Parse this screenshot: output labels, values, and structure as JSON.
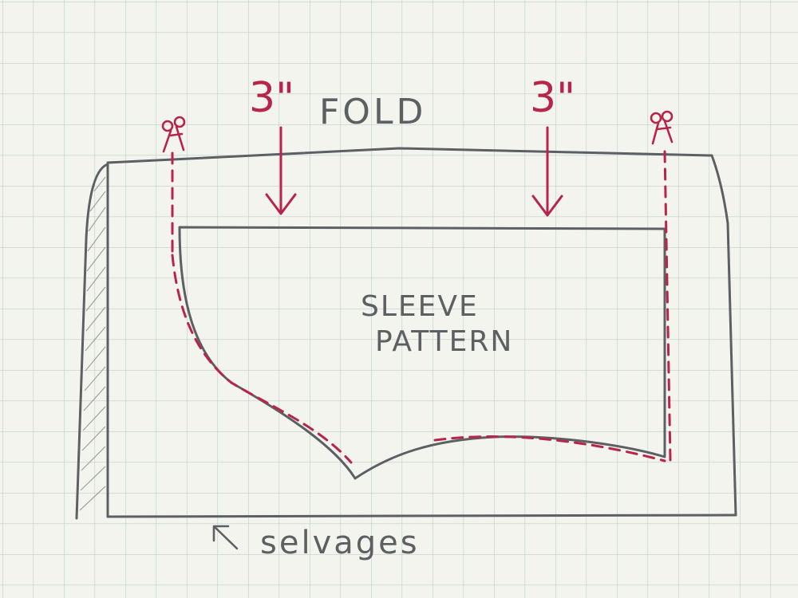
{
  "labels": {
    "fold": "FOLD",
    "left_measure": "3\"",
    "right_measure": "3\"",
    "pattern_line1": "SLEEVE",
    "pattern_line2": "PATTERN",
    "selvages": "selvages"
  },
  "colors": {
    "paper": "#f4f4ef",
    "grid": "#b9cfcb",
    "pencil": "#5d6062",
    "red_pen": "#b8254a"
  },
  "icons": {
    "scissors_left": "scissors-icon",
    "scissors_right": "scissors-icon",
    "selvage_arrow": "arrow-icon"
  }
}
